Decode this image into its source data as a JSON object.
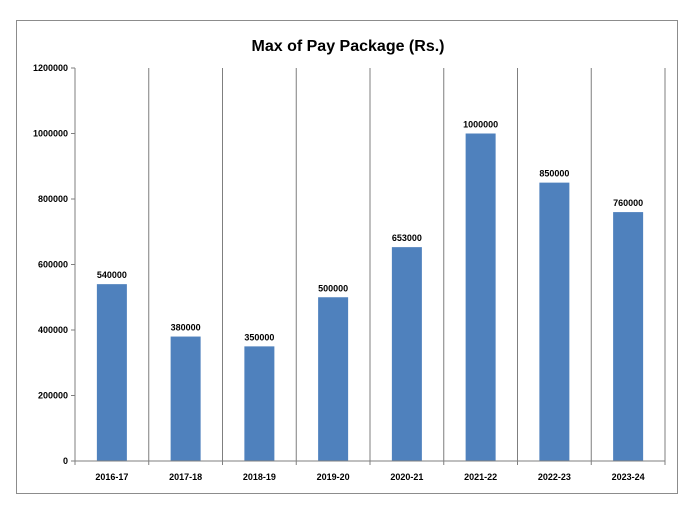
{
  "chart_data": {
    "type": "bar",
    "title": "Max of Pay Package (Rs.)",
    "xlabel": "",
    "ylabel": "",
    "categories": [
      "2016-17",
      "2017-18",
      "2018-19",
      "2019-20",
      "2020-21",
      "2021-22",
      "2022-23",
      "2023-24"
    ],
    "values": [
      540000,
      380000,
      350000,
      500000,
      653000,
      1000000,
      850000,
      760000
    ],
    "data_labels": [
      "540000",
      "380000",
      "350000",
      "500000",
      "653000",
      "1000000",
      "850000",
      "760000"
    ],
    "ylim": [
      0,
      1200000
    ],
    "yticks": [
      0,
      200000,
      400000,
      600000,
      800000,
      1000000,
      1200000
    ],
    "ytick_labels": [
      "0",
      "200000",
      "400000",
      "600000",
      "800000",
      "1000000",
      "1200000"
    ],
    "grid": "vertical",
    "legend": "none",
    "bar_color": "#4f81bd",
    "grid_color": "#7f7f7f"
  }
}
